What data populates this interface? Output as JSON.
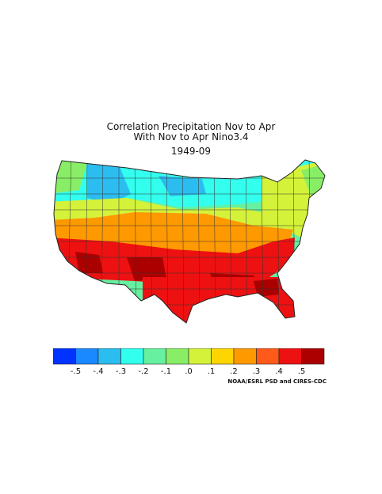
{
  "title": {
    "line1": "Correlation Precipitation Nov to Apr",
    "line2": "With Nov to Apr Nino3.4",
    "period": "1949-09"
  },
  "legend": {
    "colors": [
      "#0033ff",
      "#1a88ff",
      "#2bbdf0",
      "#33ffee",
      "#66f0a0",
      "#88ee66",
      "#d4f23a",
      "#ffd500",
      "#ff9900",
      "#ff5a1a",
      "#ee1111",
      "#aa0000"
    ],
    "tick_labels": [
      "-.5",
      "-.4",
      "-.3",
      "-.2",
      "-.1",
      ".0",
      ".1",
      ".2",
      ".3",
      ".4",
      ".5"
    ]
  },
  "credit": "NOAA/ESRL PSD and CIRES-CDC",
  "map_regions": [
    {
      "region": "pacific-northwest",
      "value": -0.15,
      "color": "#88ee66"
    },
    {
      "region": "northern-rockies",
      "value": -0.25,
      "color": "#33ffee"
    },
    {
      "region": "northern-plains",
      "value": -0.15,
      "color": "#66f0a0"
    },
    {
      "region": "upper-midwest",
      "value": -0.2,
      "color": "#33ffee"
    },
    {
      "region": "great-lakes",
      "value": -0.05,
      "color": "#66f0a0"
    },
    {
      "region": "ohio-valley",
      "value": 0.05,
      "color": "#88ee66"
    },
    {
      "region": "northeast",
      "value": 0.15,
      "color": "#d4f23a"
    },
    {
      "region": "california",
      "value": 0.35,
      "color": "#ff9900"
    },
    {
      "region": "great-basin",
      "value": 0.15,
      "color": "#d4f23a"
    },
    {
      "region": "central-plains",
      "value": 0.3,
      "color": "#ff9900"
    },
    {
      "region": "mid-atlantic",
      "value": 0.35,
      "color": "#ff5a1a"
    },
    {
      "region": "southwest",
      "value": 0.5,
      "color": "#ee1111"
    },
    {
      "region": "southern-plains",
      "value": 0.45,
      "color": "#ee1111"
    },
    {
      "region": "gulf-coast",
      "value": 0.55,
      "color": "#aa0000"
    },
    {
      "region": "southeast",
      "value": 0.5,
      "color": "#ee1111"
    },
    {
      "region": "florida",
      "value": 0.5,
      "color": "#ee1111"
    }
  ]
}
